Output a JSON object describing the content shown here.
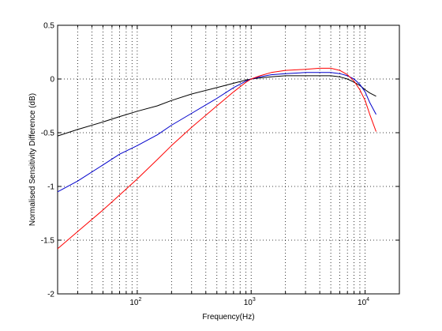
{
  "chart_data": {
    "type": "line",
    "xlabel": "Frequency(Hz)",
    "ylabel": "Normalised Sensitivity Difference (dB)",
    "xscale": "log",
    "xlim": [
      20,
      20000
    ],
    "ylim": [
      -2,
      0.5
    ],
    "grid": true,
    "yticks": [
      0.5,
      0,
      -0.5,
      -1,
      -1.5,
      -2
    ],
    "ytick_labels": [
      "0.5",
      "0",
      "-0.5",
      "-1",
      "-1.5",
      "-2"
    ],
    "xticks": [
      100,
      1000,
      10000
    ],
    "xtick_labels": [
      {
        "base": "10",
        "exp": "2"
      },
      {
        "base": "10",
        "exp": "3"
      },
      {
        "base": "10",
        "exp": "4"
      }
    ],
    "series": [
      {
        "color": "#000000",
        "x": [
          20,
          30,
          50,
          70,
          100,
          150,
          200,
          300,
          500,
          700,
          900,
          1000,
          1200,
          1500,
          2000,
          3000,
          4000,
          5000,
          6000,
          7000,
          8000,
          9000,
          10000,
          11000,
          12500
        ],
        "y": [
          -0.53,
          -0.47,
          -0.4,
          -0.35,
          -0.3,
          -0.25,
          -0.2,
          -0.14,
          -0.08,
          -0.04,
          -0.01,
          0.0,
          0.01,
          0.02,
          0.03,
          0.03,
          0.03,
          0.03,
          0.02,
          0.0,
          -0.03,
          -0.06,
          -0.1,
          -0.13,
          -0.16
        ]
      },
      {
        "color": "#0000cc",
        "x": [
          20,
          30,
          50,
          70,
          100,
          150,
          200,
          300,
          500,
          700,
          900,
          1000,
          1200,
          1500,
          2000,
          3000,
          4000,
          5000,
          6000,
          7000,
          8000,
          9000,
          10000,
          11000,
          12500
        ],
        "y": [
          -1.05,
          -0.95,
          -0.8,
          -0.7,
          -0.62,
          -0.52,
          -0.43,
          -0.32,
          -0.18,
          -0.08,
          -0.02,
          0.0,
          0.02,
          0.04,
          0.05,
          0.06,
          0.06,
          0.06,
          0.05,
          0.03,
          0.0,
          -0.05,
          -0.12,
          -0.22,
          -0.33
        ]
      },
      {
        "color": "#ff0000",
        "x": [
          20,
          30,
          50,
          70,
          100,
          150,
          200,
          300,
          500,
          700,
          900,
          1000,
          1200,
          1500,
          2000,
          3000,
          4000,
          5000,
          6000,
          7000,
          8000,
          9000,
          10000,
          11000,
          12500
        ],
        "y": [
          -1.58,
          -1.42,
          -1.22,
          -1.08,
          -0.93,
          -0.75,
          -0.62,
          -0.45,
          -0.25,
          -0.12,
          -0.03,
          0.0,
          0.03,
          0.06,
          0.08,
          0.09,
          0.1,
          0.1,
          0.08,
          0.04,
          -0.02,
          -0.1,
          -0.2,
          -0.33,
          -0.49
        ]
      }
    ]
  }
}
